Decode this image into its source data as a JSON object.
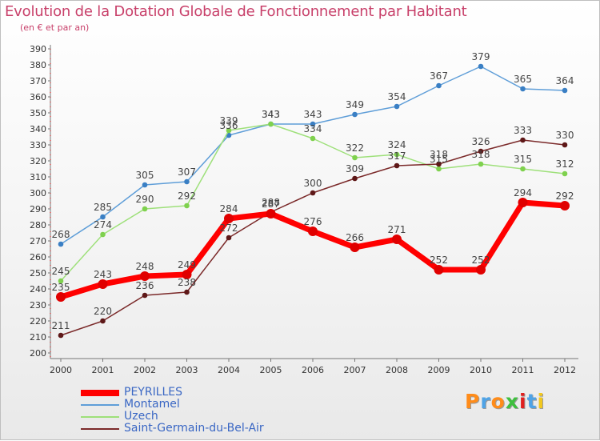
{
  "chart_data": {
    "type": "line",
    "title": "Evolution de la Dotation Globale de Fonctionnement par Habitant",
    "subtitle": "(en € et par an)",
    "categories": [
      "2000",
      "2001",
      "2002",
      "2003",
      "2004",
      "2005",
      "2006",
      "2007",
      "2008",
      "2009",
      "2010",
      "2011",
      "2012"
    ],
    "ylim": [
      200,
      390
    ],
    "ytick_step": 10,
    "grid": false,
    "series": [
      {
        "name": "Montamel",
        "color": "#5f9ed8",
        "marker": "#3a7fc4",
        "highlight": false,
        "values": [
          268,
          285,
          305,
          307,
          336,
          343,
          343,
          349,
          354,
          367,
          379,
          365,
          364
        ]
      },
      {
        "name": "Uzech",
        "color": "#9ee07a",
        "marker": "#7fd14e",
        "highlight": false,
        "values": [
          245,
          274,
          290,
          292,
          339,
          343,
          334,
          322,
          324,
          315,
          318,
          315,
          312
        ]
      },
      {
        "name": "Saint-Germain-du-Bel-Air",
        "color": "#7b2a2a",
        "marker": "#5e1818",
        "highlight": false,
        "values": [
          211,
          220,
          236,
          238,
          272,
          288,
          300,
          309,
          317,
          318,
          326,
          333,
          330
        ]
      },
      {
        "name": "PEYRILLES",
        "color": "#ff0000",
        "marker": "#e00000",
        "highlight": true,
        "values": [
          235,
          243,
          248,
          249,
          284,
          287,
          276,
          266,
          271,
          252,
          252,
          294,
          292
        ]
      }
    ],
    "legend_order": [
      "PEYRILLES",
      "Montamel",
      "Uzech",
      "Saint-Germain-du-Bel-Air"
    ]
  },
  "brand": {
    "letters": [
      "P",
      "r",
      "o",
      "x",
      "i",
      "t",
      "i"
    ],
    "colors": [
      "#ff8c1a",
      "#4fa3e6",
      "#ff8c1a",
      "#3fbf3f",
      "#e02020",
      "#4fa3e6",
      "#f2c81e"
    ]
  }
}
